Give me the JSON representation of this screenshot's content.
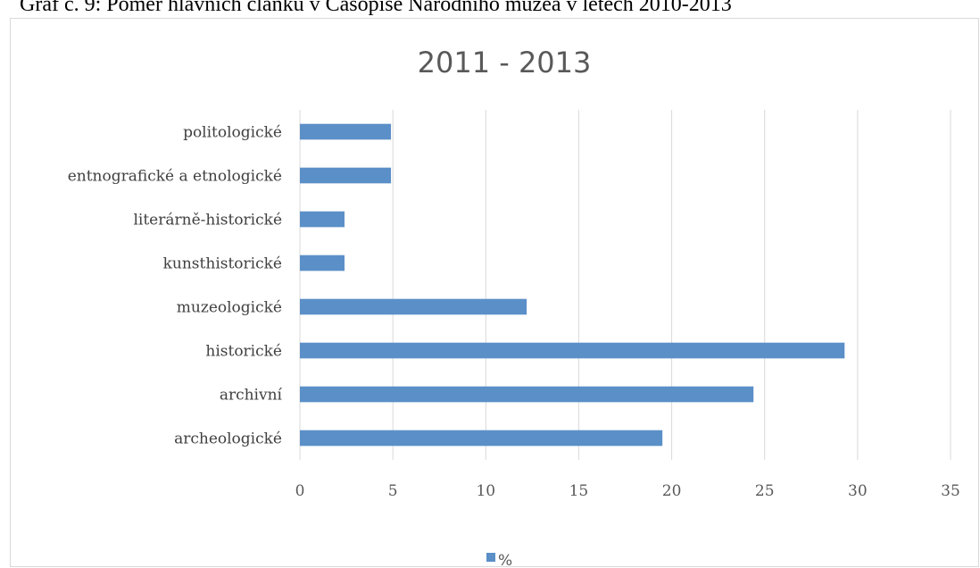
{
  "figure_caption": "Graf č. 9: Poměr hlavních článků v Časopise Národního muzea v letech 2010-2013",
  "chart_data": {
    "type": "bar",
    "orientation": "horizontal",
    "title": "2011 - 2013",
    "categories": [
      "archeologické",
      "archivní",
      "historické",
      "muzeologické",
      "kunsthistorické",
      "literárně-historické",
      "entnografické a etnologické",
      "politologické"
    ],
    "series": [
      {
        "name": "%",
        "values": [
          19.5,
          24.4,
          29.3,
          12.2,
          2.4,
          2.4,
          4.9,
          4.9
        ]
      }
    ],
    "xlim": [
      0,
      35
    ],
    "xticks": [
      0,
      5,
      10,
      15,
      20,
      25,
      30,
      35
    ],
    "grid": true,
    "legend_position": "bottom",
    "bar_color": "#5b8fc8"
  }
}
